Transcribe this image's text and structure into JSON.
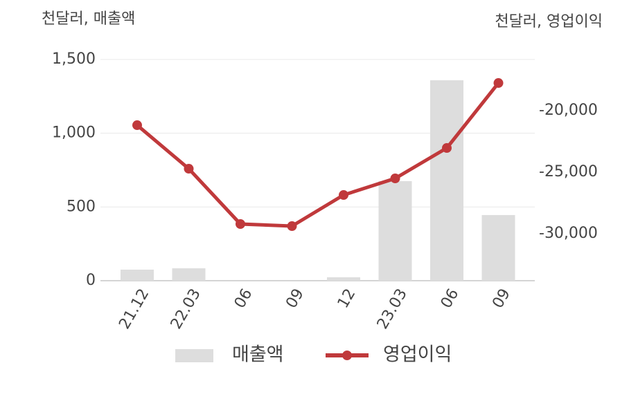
{
  "chart_data": {
    "type": "bar",
    "y_title": "천달러, 매출액",
    "y2_title": "천달러, 영업이익",
    "categories": [
      "21.12",
      "22.03",
      "06",
      "09",
      "12",
      "23.03",
      "06",
      "09"
    ],
    "series": [
      {
        "name": "매출액",
        "type": "bar",
        "axis": "y",
        "color": "#dddddd",
        "values": [
          75,
          84,
          0,
          0,
          23,
          675,
          1359,
          445
        ]
      },
      {
        "name": "영업이익",
        "type": "line",
        "axis": "y2",
        "color": "#c0393b",
        "values": [
          -21180,
          -24720,
          -29213,
          -29382,
          -26854,
          -25506,
          -23034,
          -17753
        ]
      }
    ],
    "ylim": [
      0,
      1500
    ],
    "yticks": [
      0,
      500,
      {
        "value": 1000,
        "label": "1,000"
      },
      {
        "value": 1500,
        "label": "1,500"
      }
    ],
    "y2lim": [
      -33820,
      -15840
    ],
    "y2ticks": [
      {
        "value": -30000,
        "label": "-30,000"
      },
      {
        "value": -25000,
        "label": "-25,000"
      },
      {
        "value": -20000,
        "label": "-20,000"
      }
    ],
    "grid": true
  }
}
